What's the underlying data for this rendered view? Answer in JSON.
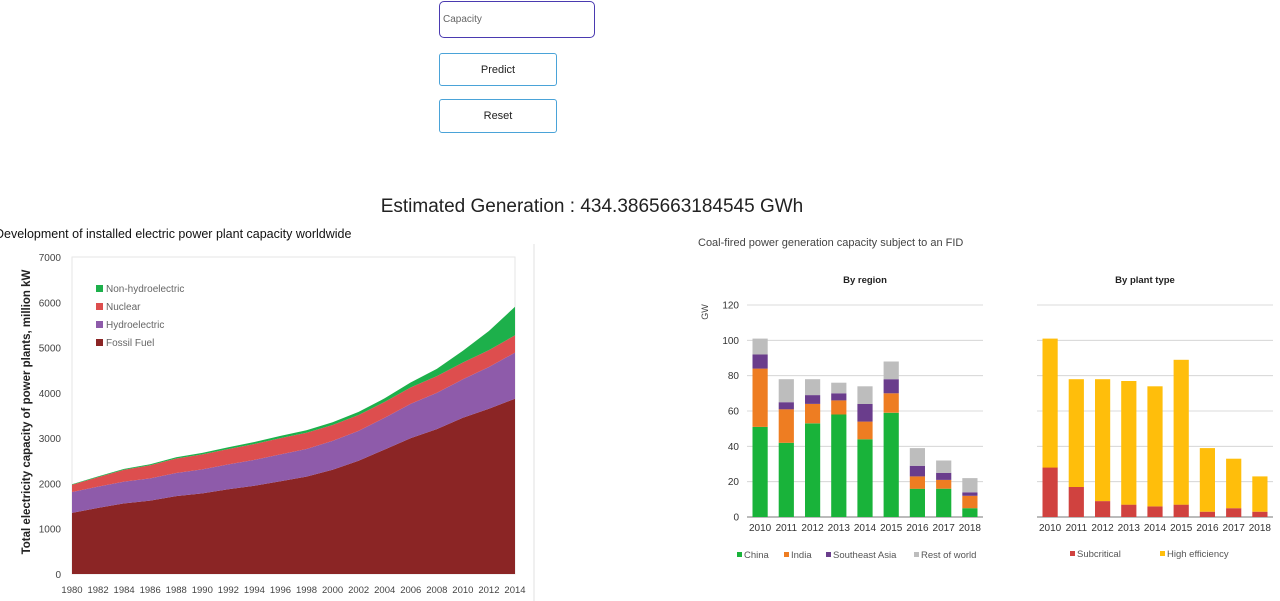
{
  "form": {
    "capacity_placeholder": "Capacity",
    "predict_label": "Predict",
    "reset_label": "Reset"
  },
  "result": {
    "text": "Estimated Generation : 434.3865663184545 GWh"
  },
  "colors": {
    "fossil": "#8B2525",
    "hydro": "#8E5BAA",
    "nuclear": "#DD4E4E",
    "nonhydro": "#1DB04B",
    "china": "#19B33A",
    "india": "#EE7D22",
    "sea": "#6A3D8C",
    "rest": "#BDBDBD",
    "subcritical": "#D0423F",
    "higheff": "#FFBE0B",
    "button_border": "#4aa3d8",
    "input_border": "#4a3ab0"
  },
  "chart_data": [
    {
      "type": "area",
      "title": "Development of installed electric power plant capacity worldwide",
      "ylabel": "Total electricity capacity of power plants, million kW",
      "xlabel": "",
      "ylim": [
        0,
        7000
      ],
      "yticks": [
        0,
        1000,
        2000,
        3000,
        4000,
        5000,
        6000,
        7000
      ],
      "stacked": true,
      "legend_position": "top-left",
      "x": [
        1980,
        1982,
        1984,
        1986,
        1988,
        1990,
        1992,
        1994,
        1996,
        1998,
        2000,
        2002,
        2004,
        2006,
        2008,
        2010,
        2012,
        2014
      ],
      "series": [
        {
          "name": "Fossil Fuel",
          "values": [
            1350,
            1460,
            1560,
            1620,
            1720,
            1780,
            1870,
            1950,
            2050,
            2150,
            2300,
            2500,
            2750,
            3000,
            3200,
            3450,
            3650,
            3870
          ]
        },
        {
          "name": "Hydroelectric",
          "values": [
            460,
            470,
            480,
            490,
            510,
            530,
            550,
            570,
            590,
            610,
            640,
            660,
            700,
            760,
            800,
            850,
            920,
            1020
          ]
        },
        {
          "name": "Nuclear",
          "values": [
            160,
            210,
            260,
            290,
            320,
            330,
            340,
            350,
            360,
            360,
            350,
            350,
            350,
            360,
            370,
            370,
            375,
            380
          ]
        },
        {
          "name": "Non-hydroelectric",
          "values": [
            10,
            15,
            20,
            25,
            30,
            35,
            40,
            45,
            50,
            55,
            60,
            70,
            80,
            110,
            160,
            260,
            420,
            630
          ]
        }
      ]
    },
    {
      "type": "bar",
      "title": "Coal-fired power generation capacity subject to an FID",
      "subtitle": "By region",
      "ylabel": "GW",
      "ylim": [
        0,
        120
      ],
      "yticks": [
        0,
        20,
        40,
        60,
        80,
        100,
        120
      ],
      "stacked": true,
      "legend_position": "bottom",
      "categories": [
        "2010",
        "2011",
        "2012",
        "2013",
        "2014",
        "2015",
        "2016",
        "2017",
        "2018"
      ],
      "series": [
        {
          "name": "China",
          "values": [
            51,
            42,
            53,
            58,
            44,
            59,
            16,
            16,
            5
          ]
        },
        {
          "name": "India",
          "values": [
            33,
            19,
            11,
            8,
            10,
            11,
            7,
            5,
            7
          ]
        },
        {
          "name": "Southeast Asia",
          "values": [
            8,
            4,
            5,
            4,
            10,
            8,
            6,
            4,
            2
          ]
        },
        {
          "name": "Rest of world",
          "values": [
            9,
            13,
            9,
            6,
            10,
            10,
            10,
            7,
            8
          ]
        }
      ]
    },
    {
      "type": "bar",
      "title": "",
      "subtitle": "By plant type",
      "ylim": [
        0,
        120
      ],
      "stacked": true,
      "legend_position": "bottom",
      "categories": [
        "2010",
        "2011",
        "2012",
        "2013",
        "2014",
        "2015",
        "2016",
        "2017",
        "2018"
      ],
      "series": [
        {
          "name": "Subcritical",
          "values": [
            28,
            17,
            9,
            7,
            6,
            7,
            3,
            5,
            3
          ]
        },
        {
          "name": "High efficiency",
          "values": [
            73,
            61,
            69,
            70,
            68,
            82,
            36,
            28,
            20
          ]
        }
      ]
    }
  ]
}
